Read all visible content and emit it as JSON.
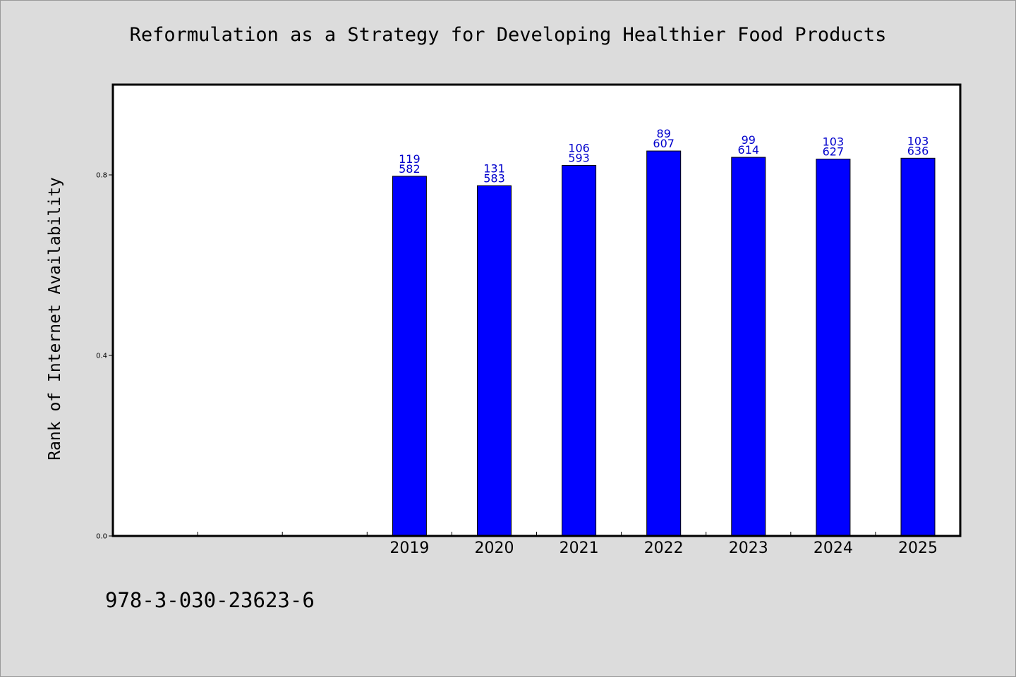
{
  "chart_data": {
    "type": "bar",
    "title": "Reformulation as a Strategy for Developing Healthier Food Products",
    "ylabel": "Rank of Internet Availability",
    "xlabel": "",
    "categories": [
      "",
      "",
      "",
      "2019",
      "2020",
      "2021",
      "2022",
      "2023",
      "2024",
      "2025"
    ],
    "values": [
      null,
      null,
      null,
      0.797,
      0.776,
      0.821,
      0.853,
      0.839,
      0.835,
      0.837
    ],
    "bar_labels": [
      null,
      null,
      null,
      [
        "119",
        "582"
      ],
      [
        "131",
        "583"
      ],
      [
        "106",
        "593"
      ],
      [
        "89",
        "607"
      ],
      [
        "99",
        "614"
      ],
      [
        "103",
        "627"
      ],
      [
        "103",
        "636"
      ]
    ],
    "yticks": [
      "0.0",
      "0.4",
      "0.8"
    ],
    "ytick_values": [
      0.0,
      0.4,
      0.8
    ],
    "ylim": [
      0,
      1.0
    ],
    "grid": false,
    "legend": "none",
    "colors": {
      "bar": "#0000ff",
      "bar_label": "#0000cc",
      "plot_bg": "#ffffff",
      "page_bg": "#dcdcdc"
    }
  },
  "footer": {
    "isbn": "978-3-030-23623-6"
  }
}
